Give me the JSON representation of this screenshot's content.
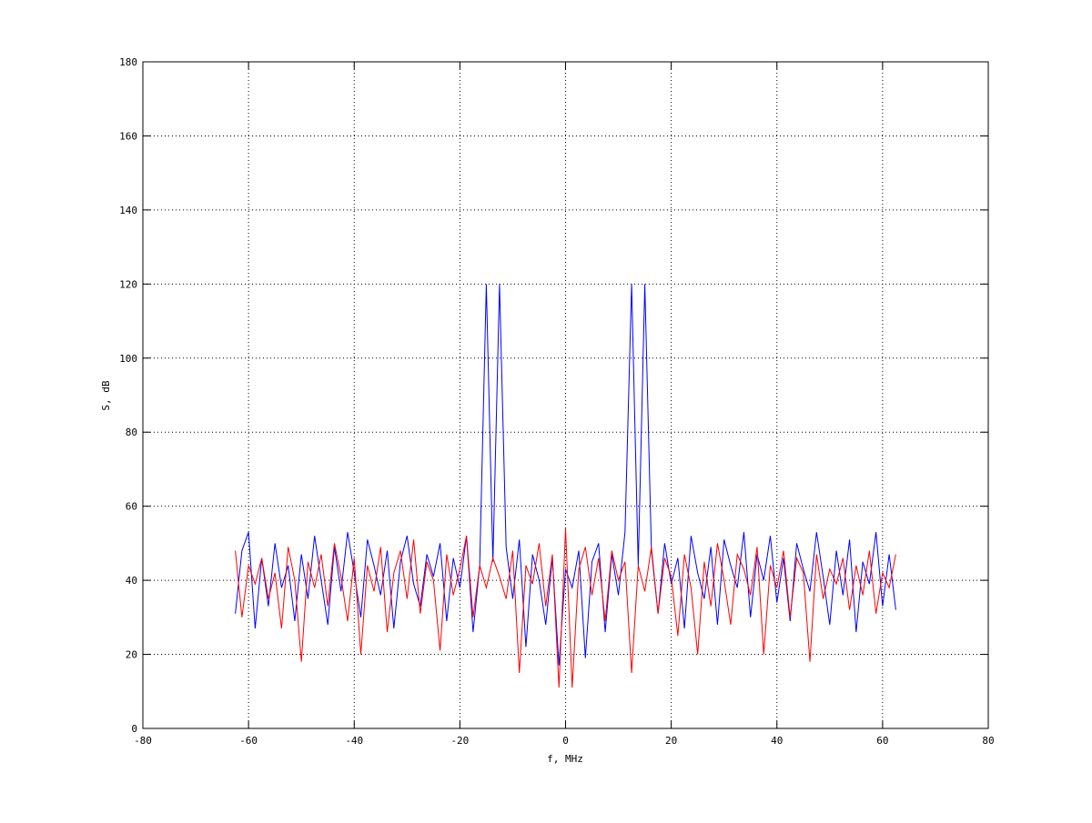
{
  "chart_data": {
    "type": "line",
    "xlabel": "f, MHz",
    "ylabel": "S, dB",
    "x": [
      -62.5,
      -61.25,
      -60,
      -58.75,
      -57.5,
      -56.25,
      -55,
      -53.75,
      -52.5,
      -51.25,
      -50,
      -48.75,
      -47.5,
      -46.25,
      -45,
      -43.75,
      -42.5,
      -41.25,
      -40,
      -38.75,
      -37.5,
      -36.25,
      -35,
      -33.75,
      -32.5,
      -31.25,
      -30,
      -28.75,
      -27.5,
      -26.25,
      -25,
      -23.75,
      -22.5,
      -21.25,
      -20,
      -18.75,
      -17.5,
      -16.25,
      -15,
      -13.75,
      -12.5,
      -11.25,
      -10,
      -8.75,
      -7.5,
      -6.25,
      -5,
      -3.75,
      -2.5,
      -1.25,
      0,
      1.25,
      2.5,
      3.75,
      5,
      6.25,
      7.5,
      8.75,
      10,
      11.25,
      12.5,
      13.75,
      15,
      16.25,
      17.5,
      18.75,
      20,
      21.25,
      22.5,
      23.75,
      25,
      26.25,
      27.5,
      28.75,
      30,
      31.25,
      32.5,
      33.75,
      35,
      36.25,
      37.5,
      38.75,
      40,
      41.25,
      42.5,
      43.75,
      45,
      46.25,
      47.5,
      48.75,
      50,
      51.25,
      52.5,
      53.75,
      55,
      56.25,
      57.5,
      58.75,
      60,
      61.25,
      62.5
    ],
    "series": [
      {
        "color": "#0000ff",
        "values": [
          31,
          48,
          53,
          27,
          46,
          33,
          50,
          38,
          44,
          29,
          47,
          35,
          52,
          40,
          28,
          49,
          37,
          53,
          42,
          30,
          51,
          44,
          36,
          48,
          27,
          45,
          52,
          39,
          33,
          47,
          41,
          50,
          29,
          46,
          38,
          52,
          26,
          44,
          120,
          45,
          120,
          49,
          35,
          51,
          22,
          47,
          40,
          28,
          46,
          17,
          43,
          38,
          48,
          19,
          45,
          50,
          26,
          47,
          36,
          53,
          120,
          44,
          120,
          48,
          31,
          50,
          39,
          46,
          27,
          52,
          42,
          35,
          49,
          28,
          51,
          44,
          38,
          53,
          30,
          47,
          40,
          52,
          34,
          46,
          29,
          50,
          43,
          37,
          53,
          41,
          28,
          48,
          36,
          51,
          26,
          45,
          39,
          53,
          33,
          47,
          32
        ]
      },
      {
        "color": "#ff0000",
        "values": [
          48,
          30,
          44,
          39,
          46,
          35,
          42,
          27,
          49,
          40,
          18,
          45,
          38,
          47,
          33,
          50,
          41,
          29,
          46,
          20,
          44,
          37,
          49,
          26,
          42,
          48,
          35,
          51,
          31,
          45,
          40,
          21,
          47,
          36,
          43,
          52,
          30,
          44,
          38,
          46,
          41,
          35,
          48,
          15,
          44,
          39,
          50,
          33,
          47,
          11,
          54,
          11,
          43,
          49,
          36,
          46,
          29,
          48,
          40,
          45,
          15,
          44,
          37,
          49,
          31,
          46,
          41,
          25,
          47,
          38,
          20,
          45,
          33,
          50,
          40,
          28,
          47,
          43,
          36,
          49,
          20,
          44,
          38,
          48,
          30,
          46,
          42,
          18,
          47,
          35,
          43,
          39,
          46,
          32,
          44,
          36,
          48,
          31,
          42,
          38,
          47
        ]
      }
    ],
    "xlim": [
      -80,
      80
    ],
    "xticks": [
      -80,
      -60,
      -40,
      -20,
      0,
      20,
      40,
      60,
      80
    ],
    "ylim": [
      0,
      180
    ],
    "yticks": [
      0,
      20,
      40,
      60,
      80,
      100,
      120,
      140,
      160,
      180
    ],
    "grid": true
  }
}
